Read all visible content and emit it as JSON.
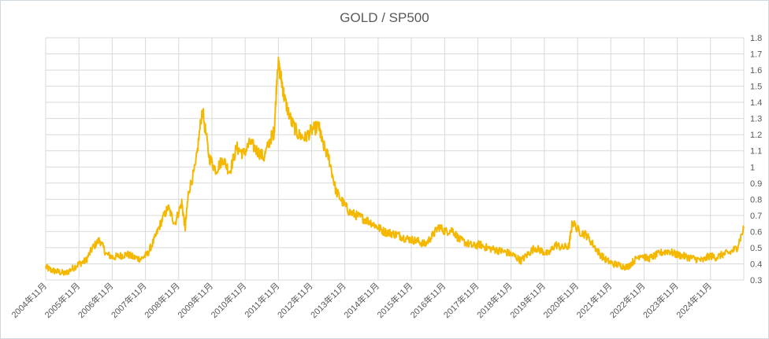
{
  "chart_data": {
    "type": "line",
    "title": "GOLD / SP500",
    "xlabel": "",
    "ylabel": "",
    "ylim": [
      0.3,
      1.8
    ],
    "y_ticks": [
      "0.3",
      "0.4",
      "0.5",
      "0.6",
      "0.7",
      "0.8",
      "0.9",
      "1",
      "1.1",
      "1.2",
      "1.3",
      "1.4",
      "1.5",
      "1.6",
      "1.7",
      "1.8"
    ],
    "x_ticks": [
      "2004年11月",
      "2005年11月",
      "2006年11月",
      "2007年11月",
      "2008年11月",
      "2009年11月",
      "2010年11月",
      "2011年11月",
      "2012年11月",
      "2013年11月",
      "2014年11月",
      "2015年11月",
      "2016年11月",
      "2017年11月",
      "2018年11月",
      "2019年11月",
      "2020年11月",
      "2021年11月",
      "2022年11月",
      "2023年11月",
      "2024年11月"
    ],
    "xlim": [
      2004.83,
      2025.2
    ],
    "grid": true,
    "y_axis_side": "right",
    "line_color": "#f5b800",
    "series": [
      {
        "x": [
          2004.83,
          2005.0,
          2005.2,
          2005.4,
          2005.6,
          2005.8,
          2006.0,
          2006.2,
          2006.4,
          2006.6,
          2006.8,
          2007.0,
          2007.2,
          2007.4,
          2007.6,
          2007.8,
          2008.0,
          2008.2,
          2008.4,
          2008.6,
          2008.8,
          2008.9,
          2009.0,
          2009.2,
          2009.4,
          2009.6,
          2009.8,
          2010.0,
          2010.2,
          2010.4,
          2010.6,
          2010.8,
          2011.0,
          2011.2,
          2011.4,
          2011.5,
          2011.6,
          2011.7,
          2011.8,
          2012.0,
          2012.2,
          2012.4,
          2012.6,
          2012.8,
          2012.9,
          2013.1,
          2013.3,
          2013.5,
          2013.7,
          2013.9,
          2014.1,
          2014.3,
          2014.5,
          2014.7,
          2014.9,
          2015.1,
          2015.3,
          2015.5,
          2015.7,
          2015.9,
          2016.1,
          2016.3,
          2016.5,
          2016.7,
          2016.9,
          2017.1,
          2017.3,
          2017.5,
          2017.7,
          2017.9,
          2018.1,
          2018.3,
          2018.5,
          2018.7,
          2018.9,
          2019.1,
          2019.3,
          2019.5,
          2019.7,
          2019.9,
          2020.1,
          2020.2,
          2020.4,
          2020.6,
          2020.8,
          2021.0,
          2021.2,
          2021.4,
          2021.6,
          2021.8,
          2022.0,
          2022.2,
          2022.4,
          2022.6,
          2022.8,
          2023.0,
          2023.2,
          2023.4,
          2023.6,
          2023.8,
          2024.0,
          2024.2,
          2024.4,
          2024.6,
          2024.8,
          2025.0,
          2025.2
        ],
        "values": [
          0.38,
          0.36,
          0.35,
          0.34,
          0.37,
          0.4,
          0.42,
          0.5,
          0.55,
          0.46,
          0.44,
          0.45,
          0.46,
          0.44,
          0.43,
          0.46,
          0.55,
          0.66,
          0.75,
          0.65,
          0.78,
          0.62,
          0.85,
          1.0,
          1.36,
          1.06,
          0.98,
          1.05,
          0.97,
          1.12,
          1.08,
          1.15,
          1.1,
          1.06,
          1.18,
          1.22,
          1.65,
          1.55,
          1.42,
          1.28,
          1.2,
          1.18,
          1.23,
          1.25,
          1.15,
          1.05,
          0.85,
          0.78,
          0.72,
          0.7,
          0.68,
          0.66,
          0.63,
          0.6,
          0.59,
          0.58,
          0.56,
          0.55,
          0.54,
          0.52,
          0.57,
          0.63,
          0.6,
          0.61,
          0.55,
          0.53,
          0.51,
          0.52,
          0.5,
          0.49,
          0.48,
          0.47,
          0.45,
          0.42,
          0.46,
          0.5,
          0.48,
          0.46,
          0.52,
          0.5,
          0.51,
          0.66,
          0.6,
          0.58,
          0.52,
          0.46,
          0.42,
          0.4,
          0.39,
          0.38,
          0.42,
          0.46,
          0.43,
          0.45,
          0.47,
          0.48,
          0.46,
          0.45,
          0.44,
          0.43,
          0.42,
          0.45,
          0.44,
          0.46,
          0.47,
          0.5,
          0.62
        ]
      }
    ]
  }
}
